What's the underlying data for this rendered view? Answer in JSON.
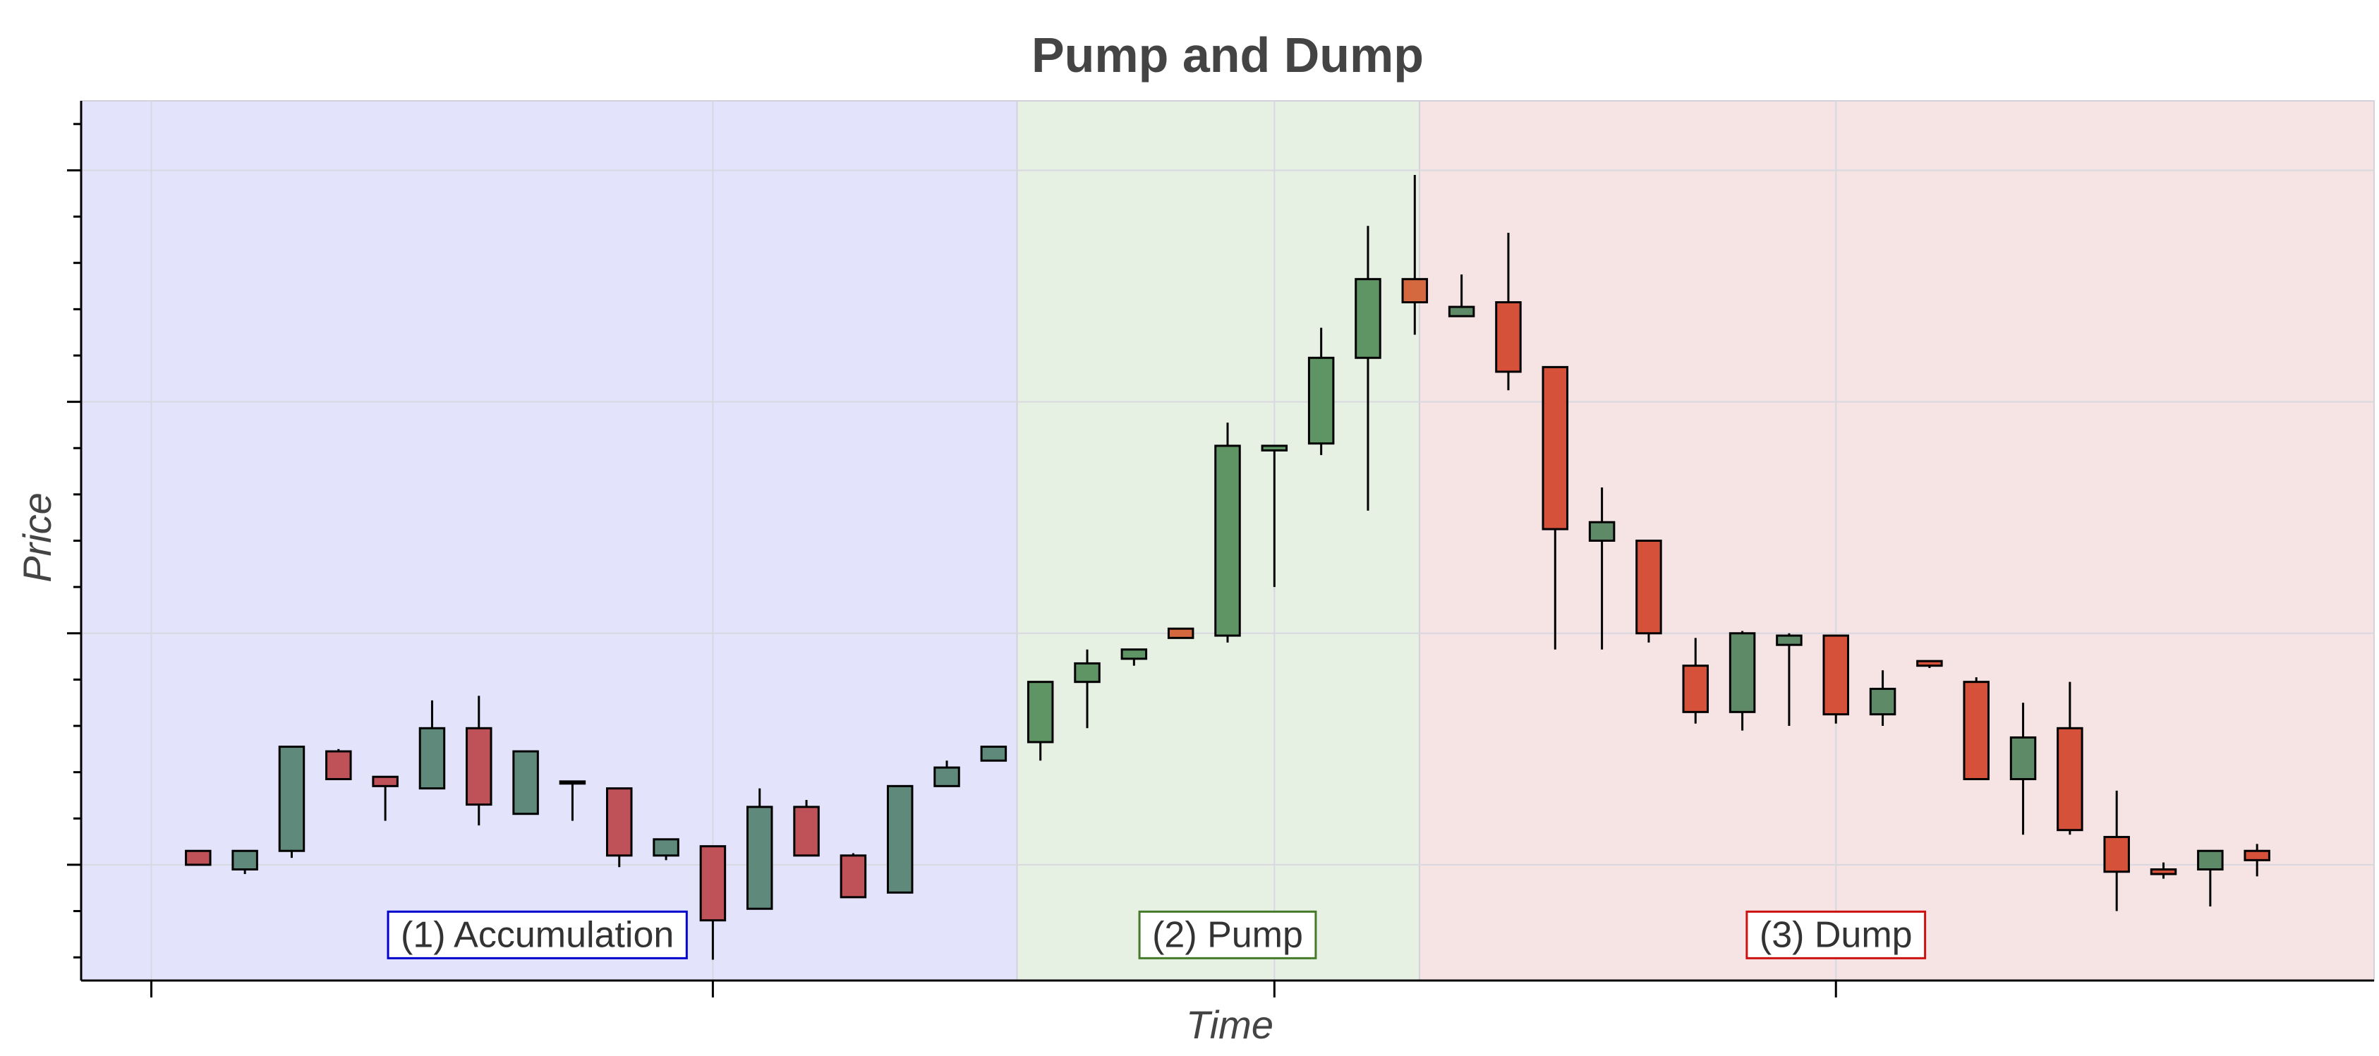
{
  "chart_data": {
    "type": "candlestick",
    "title": "Pump and Dump",
    "xlabel": "Time",
    "ylabel": "Price",
    "xlim": [
      0.5,
      49.5
    ],
    "ylim": [
      91,
      129
    ],
    "x_major_ticks": [
      2,
      14,
      26,
      38
    ],
    "y_major_ticks": [
      96,
      106,
      116,
      126
    ],
    "y_minor_ticks": [
      92,
      94,
      98,
      100,
      102,
      104,
      108,
      110,
      112,
      114,
      118,
      120,
      122,
      124,
      128
    ],
    "tick_labels_shown": false,
    "grid": true,
    "colors": {
      "up_phase1": "#5f8a7b",
      "down_phase1": "#bf5158",
      "up_phase2": "#5f9565",
      "down_phase2": "#d4683f",
      "up_phase3": "#5f8a68",
      "down_phase3": "#d6513a",
      "edge": "#000000"
    },
    "regions": [
      {
        "name": "(1) Accumulation",
        "x_start": 0.5,
        "x_end": 20.5,
        "fill": "#e3e3fb",
        "border": "#0000cc",
        "label_x": 10.25,
        "label_y": 93
      },
      {
        "name": "(2) Pump",
        "x_start": 20.5,
        "x_end": 29.1,
        "fill": "#e6f1e4",
        "border": "#447a2a",
        "label_x": 25.0,
        "label_y": 93
      },
      {
        "name": "(3) Dump",
        "x_start": 29.1,
        "x_end": 49.5,
        "fill": "#f6e3e3",
        "border": "#cc1111",
        "label_x": 38.0,
        "label_y": 93
      }
    ],
    "candles": [
      {
        "x": 3,
        "open": 96.6,
        "close": 96.0,
        "high": 96.6,
        "low": 96.0,
        "dir": "down",
        "phase": 1
      },
      {
        "x": 4,
        "open": 95.8,
        "close": 96.6,
        "high": 96.6,
        "low": 95.6,
        "dir": "up",
        "phase": 1
      },
      {
        "x": 5,
        "open": 96.6,
        "close": 101.1,
        "high": 101.1,
        "low": 96.3,
        "dir": "up",
        "phase": 1
      },
      {
        "x": 6,
        "open": 100.9,
        "close": 99.7,
        "high": 101.0,
        "low": 99.7,
        "dir": "down",
        "phase": 1
      },
      {
        "x": 7,
        "open": 99.8,
        "close": 99.4,
        "high": 99.8,
        "low": 97.9,
        "dir": "down",
        "phase": 1
      },
      {
        "x": 8,
        "open": 99.3,
        "close": 101.9,
        "high": 103.1,
        "low": 99.3,
        "dir": "up",
        "phase": 1
      },
      {
        "x": 9,
        "open": 101.9,
        "close": 98.6,
        "high": 103.3,
        "low": 97.7,
        "dir": "down",
        "phase": 1
      },
      {
        "x": 10,
        "open": 98.2,
        "close": 100.9,
        "high": 100.9,
        "low": 98.2,
        "dir": "up",
        "phase": 1
      },
      {
        "x": 11,
        "open": 99.6,
        "close": 99.6,
        "high": 99.6,
        "low": 97.9,
        "dir": "flat",
        "phase": 1
      },
      {
        "x": 12,
        "open": 99.3,
        "close": 96.4,
        "high": 99.3,
        "low": 95.9,
        "dir": "down",
        "phase": 1
      },
      {
        "x": 13,
        "open": 96.4,
        "close": 97.1,
        "high": 97.1,
        "low": 96.2,
        "dir": "up",
        "phase": 1
      },
      {
        "x": 14,
        "open": 96.8,
        "close": 93.6,
        "high": 96.8,
        "low": 91.9,
        "dir": "down",
        "phase": 1
      },
      {
        "x": 15,
        "open": 94.1,
        "close": 98.5,
        "high": 99.3,
        "low": 94.1,
        "dir": "up",
        "phase": 1
      },
      {
        "x": 16,
        "open": 98.5,
        "close": 96.4,
        "high": 98.8,
        "low": 96.4,
        "dir": "down",
        "phase": 1
      },
      {
        "x": 17,
        "open": 96.4,
        "close": 94.6,
        "high": 96.5,
        "low": 94.6,
        "dir": "down",
        "phase": 1
      },
      {
        "x": 18,
        "open": 94.8,
        "close": 99.4,
        "high": 99.4,
        "low": 94.8,
        "dir": "up",
        "phase": 1
      },
      {
        "x": 19,
        "open": 99.4,
        "close": 100.2,
        "high": 100.5,
        "low": 99.4,
        "dir": "up",
        "phase": 1
      },
      {
        "x": 20,
        "open": 100.5,
        "close": 101.1,
        "high": 101.1,
        "low": 100.5,
        "dir": "up",
        "phase": 1
      },
      {
        "x": 21,
        "open": 101.3,
        "close": 103.9,
        "high": 103.9,
        "low": 100.5,
        "dir": "up",
        "phase": 2
      },
      {
        "x": 22,
        "open": 103.9,
        "close": 104.7,
        "high": 105.3,
        "low": 101.9,
        "dir": "up",
        "phase": 2
      },
      {
        "x": 23,
        "open": 104.9,
        "close": 105.3,
        "high": 105.3,
        "low": 104.6,
        "dir": "up",
        "phase": 2
      },
      {
        "x": 24,
        "open": 106.2,
        "close": 105.8,
        "high": 106.2,
        "low": 105.8,
        "dir": "down",
        "phase": 2
      },
      {
        "x": 25,
        "open": 105.9,
        "close": 114.1,
        "high": 115.1,
        "low": 105.6,
        "dir": "up",
        "phase": 2
      },
      {
        "x": 26,
        "open": 113.9,
        "close": 114.1,
        "high": 114.1,
        "low": 108.0,
        "dir": "up",
        "phase": 2
      },
      {
        "x": 27,
        "open": 114.2,
        "close": 117.9,
        "high": 119.2,
        "low": 113.7,
        "dir": "up",
        "phase": 2
      },
      {
        "x": 28,
        "open": 117.9,
        "close": 121.3,
        "high": 123.6,
        "low": 111.3,
        "dir": "up",
        "phase": 2
      },
      {
        "x": 29,
        "open": 121.3,
        "close": 120.3,
        "high": 125.8,
        "low": 118.9,
        "dir": "down",
        "phase": 2
      },
      {
        "x": 30,
        "open": 119.7,
        "close": 120.1,
        "high": 121.5,
        "low": 119.7,
        "dir": "up",
        "phase": 3
      },
      {
        "x": 31,
        "open": 120.3,
        "close": 117.3,
        "high": 123.3,
        "low": 116.5,
        "dir": "down",
        "phase": 3
      },
      {
        "x": 32,
        "open": 117.5,
        "close": 110.5,
        "high": 117.5,
        "low": 105.3,
        "dir": "down",
        "phase": 3
      },
      {
        "x": 33,
        "open": 110.0,
        "close": 110.8,
        "high": 112.3,
        "low": 105.3,
        "dir": "up",
        "phase": 3
      },
      {
        "x": 34,
        "open": 110.0,
        "close": 106.0,
        "high": 110.0,
        "low": 105.6,
        "dir": "down",
        "phase": 3
      },
      {
        "x": 35,
        "open": 104.6,
        "close": 102.6,
        "high": 105.8,
        "low": 102.1,
        "dir": "down",
        "phase": 3
      },
      {
        "x": 36,
        "open": 102.6,
        "close": 106.0,
        "high": 106.1,
        "low": 101.8,
        "dir": "up",
        "phase": 3
      },
      {
        "x": 37,
        "open": 105.5,
        "close": 105.9,
        "high": 106.0,
        "low": 102.0,
        "dir": "up",
        "phase": 3
      },
      {
        "x": 38,
        "open": 105.9,
        "close": 102.5,
        "high": 105.9,
        "low": 102.1,
        "dir": "down",
        "phase": 3
      },
      {
        "x": 39,
        "open": 102.5,
        "close": 103.6,
        "high": 104.4,
        "low": 102.0,
        "dir": "up",
        "phase": 3
      },
      {
        "x": 40,
        "open": 104.8,
        "close": 104.6,
        "high": 104.8,
        "low": 104.5,
        "dir": "down",
        "phase": 3
      },
      {
        "x": 41,
        "open": 103.9,
        "close": 99.7,
        "high": 104.1,
        "low": 99.7,
        "dir": "down",
        "phase": 3
      },
      {
        "x": 42,
        "open": 99.7,
        "close": 101.5,
        "high": 103.0,
        "low": 97.3,
        "dir": "up",
        "phase": 3
      },
      {
        "x": 43,
        "open": 101.9,
        "close": 97.5,
        "high": 103.9,
        "low": 97.3,
        "dir": "down",
        "phase": 3
      },
      {
        "x": 44,
        "open": 97.2,
        "close": 95.7,
        "high": 99.2,
        "low": 94.0,
        "dir": "down",
        "phase": 3
      },
      {
        "x": 45,
        "open": 95.8,
        "close": 95.6,
        "high": 96.1,
        "low": 95.4,
        "dir": "down",
        "phase": 3
      },
      {
        "x": 46,
        "open": 95.8,
        "close": 96.6,
        "high": 96.6,
        "low": 94.2,
        "dir": "up",
        "phase": 3
      },
      {
        "x": 47,
        "open": 96.6,
        "close": 96.2,
        "high": 96.9,
        "low": 95.5,
        "dir": "down",
        "phase": 3
      }
    ]
  }
}
